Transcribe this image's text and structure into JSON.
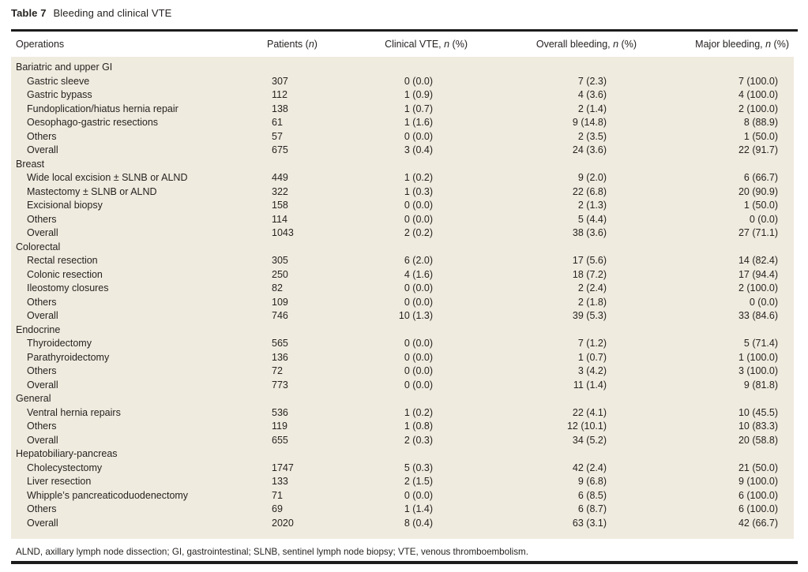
{
  "table": {
    "title_label": "Table 7",
    "title_text": "Bleeding and clinical VTE",
    "columns": [
      {
        "segments": [
          {
            "t": "Operations",
            "i": false
          }
        ]
      },
      {
        "segments": [
          {
            "t": "Patients (",
            "i": false
          },
          {
            "t": "n",
            "i": true
          },
          {
            "t": ")",
            "i": false
          }
        ]
      },
      {
        "segments": [
          {
            "t": "Clinical VTE, ",
            "i": false
          },
          {
            "t": "n",
            "i": true
          },
          {
            "t": " (%)",
            "i": false
          }
        ]
      },
      {
        "segments": [
          {
            "t": "Overall bleeding, ",
            "i": false
          },
          {
            "t": "n",
            "i": true
          },
          {
            "t": " (%)",
            "i": false
          }
        ]
      },
      {
        "segments": [
          {
            "t": "Major bleeding, ",
            "i": false
          },
          {
            "t": "n",
            "i": true
          },
          {
            "t": " (%)",
            "i": false
          }
        ]
      }
    ],
    "sections": [
      {
        "name": "Bariatric and upper GI",
        "rows": [
          {
            "operation": "Gastric sleeve",
            "patients": "307",
            "clinical_vte": "0 (0.0)",
            "overall_bleeding": "7 (2.3)",
            "major_bleeding": "7 (100.0)"
          },
          {
            "operation": "Gastric bypass",
            "patients": "112",
            "clinical_vte": "1 (0.9)",
            "overall_bleeding": "4 (3.6)",
            "major_bleeding": "4 (100.0)"
          },
          {
            "operation": "Fundoplication/hiatus hernia repair",
            "patients": "138",
            "clinical_vte": "1 (0.7)",
            "overall_bleeding": "2 (1.4)",
            "major_bleeding": "2 (100.0)"
          },
          {
            "operation": "Oesophago-gastric resections",
            "patients": "61",
            "clinical_vte": "1 (1.6)",
            "overall_bleeding": "9 (14.8)",
            "major_bleeding": "8 (88.9)"
          },
          {
            "operation": "Others",
            "patients": "57",
            "clinical_vte": "0 (0.0)",
            "overall_bleeding": "2 (3.5)",
            "major_bleeding": "1 (50.0)"
          },
          {
            "operation": "Overall",
            "patients": "675",
            "clinical_vte": "3 (0.4)",
            "overall_bleeding": "24 (3.6)",
            "major_bleeding": "22 (91.7)"
          }
        ]
      },
      {
        "name": "Breast",
        "rows": [
          {
            "operation": "Wide local excision ± SLNB or ALND",
            "patients": "449",
            "clinical_vte": "1 (0.2)",
            "overall_bleeding": "9 (2.0)",
            "major_bleeding": "6 (66.7)"
          },
          {
            "operation": "Mastectomy ± SLNB or ALND",
            "patients": "322",
            "clinical_vte": "1 (0.3)",
            "overall_bleeding": "22 (6.8)",
            "major_bleeding": "20 (90.9)"
          },
          {
            "operation": "Excisional biopsy",
            "patients": "158",
            "clinical_vte": "0 (0.0)",
            "overall_bleeding": "2 (1.3)",
            "major_bleeding": "1 (50.0)"
          },
          {
            "operation": "Others",
            "patients": "114",
            "clinical_vte": "0 (0.0)",
            "overall_bleeding": "5 (4.4)",
            "major_bleeding": "0 (0.0)"
          },
          {
            "operation": "Overall",
            "patients": "1043",
            "clinical_vte": "2 (0.2)",
            "overall_bleeding": "38 (3.6)",
            "major_bleeding": "27 (71.1)"
          }
        ]
      },
      {
        "name": "Colorectal",
        "rows": [
          {
            "operation": "Rectal resection",
            "patients": "305",
            "clinical_vte": "6 (2.0)",
            "overall_bleeding": "17 (5.6)",
            "major_bleeding": "14 (82.4)"
          },
          {
            "operation": "Colonic resection",
            "patients": "250",
            "clinical_vte": "4 (1.6)",
            "overall_bleeding": "18 (7.2)",
            "major_bleeding": "17 (94.4)"
          },
          {
            "operation": "Ileostomy closures",
            "patients": "82",
            "clinical_vte": "0 (0.0)",
            "overall_bleeding": "2 (2.4)",
            "major_bleeding": "2 (100.0)"
          },
          {
            "operation": "Others",
            "patients": "109",
            "clinical_vte": "0 (0.0)",
            "overall_bleeding": "2 (1.8)",
            "major_bleeding": "0 (0.0)"
          },
          {
            "operation": "Overall",
            "patients": "746",
            "clinical_vte": "10 (1.3)",
            "overall_bleeding": "39 (5.3)",
            "major_bleeding": "33 (84.6)"
          }
        ]
      },
      {
        "name": "Endocrine",
        "rows": [
          {
            "operation": "Thyroidectomy",
            "patients": "565",
            "clinical_vte": "0 (0.0)",
            "overall_bleeding": "7 (1.2)",
            "major_bleeding": "5 (71.4)"
          },
          {
            "operation": "Parathyroidectomy",
            "patients": "136",
            "clinical_vte": "0 (0.0)",
            "overall_bleeding": "1 (0.7)",
            "major_bleeding": "1 (100.0)"
          },
          {
            "operation": "Others",
            "patients": "72",
            "clinical_vte": "0 (0.0)",
            "overall_bleeding": "3 (4.2)",
            "major_bleeding": "3 (100.0)"
          },
          {
            "operation": "Overall",
            "patients": "773",
            "clinical_vte": "0 (0.0)",
            "overall_bleeding": "11 (1.4)",
            "major_bleeding": "9 (81.8)"
          }
        ]
      },
      {
        "name": "General",
        "rows": [
          {
            "operation": "Ventral hernia repairs",
            "patients": "536",
            "clinical_vte": "1 (0.2)",
            "overall_bleeding": "22 (4.1)",
            "major_bleeding": "10 (45.5)"
          },
          {
            "operation": "Others",
            "patients": "119",
            "clinical_vte": "1 (0.8)",
            "overall_bleeding": "12 (10.1)",
            "major_bleeding": "10 (83.3)"
          },
          {
            "operation": "Overall",
            "patients": "655",
            "clinical_vte": "2 (0.3)",
            "overall_bleeding": "34 (5.2)",
            "major_bleeding": "20 (58.8)"
          }
        ]
      },
      {
        "name": "Hepatobiliary-pancreas",
        "rows": [
          {
            "operation": "Cholecystectomy",
            "patients": "1747",
            "clinical_vte": "5 (0.3)",
            "overall_bleeding": "42 (2.4)",
            "major_bleeding": "21 (50.0)"
          },
          {
            "operation": "Liver resection",
            "patients": "133",
            "clinical_vte": "2 (1.5)",
            "overall_bleeding": "9 (6.8)",
            "major_bleeding": "9 (100.0)"
          },
          {
            "operation": "Whipple’s pancreaticoduodenectomy",
            "patients": "71",
            "clinical_vte": "0 (0.0)",
            "overall_bleeding": "6 (8.5)",
            "major_bleeding": "6 (100.0)"
          },
          {
            "operation": "Others",
            "patients": "69",
            "clinical_vte": "1 (1.4)",
            "overall_bleeding": "6 (8.7)",
            "major_bleeding": "6 (100.0)"
          },
          {
            "operation": "Overall",
            "patients": "2020",
            "clinical_vte": "8 (0.4)",
            "overall_bleeding": "63 (3.1)",
            "major_bleeding": "42 (66.7)"
          }
        ]
      }
    ],
    "footnote": "ALND, axillary lymph node dissection; GI, gastrointestinal; SLNB, sentinel lymph node biopsy; VTE, venous thromboembolism.",
    "colors": {
      "body_background": "#f0ebdf",
      "text": "#262321",
      "rule": "#1c1c1c"
    }
  }
}
